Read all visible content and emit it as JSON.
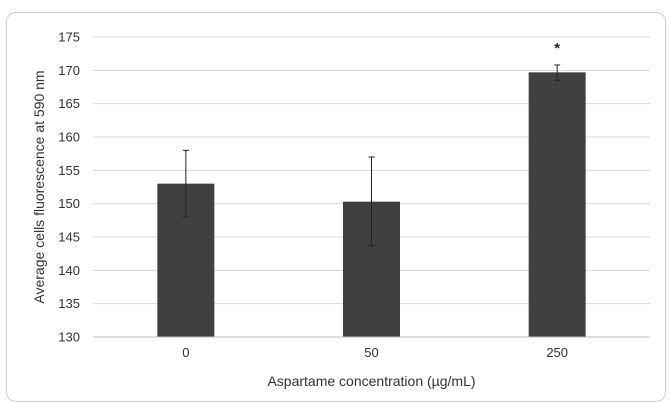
{
  "chart_data": {
    "type": "bar",
    "categories": [
      "0",
      "50",
      "250"
    ],
    "values": [
      153.0,
      150.3,
      169.7
    ],
    "error_upper": [
      158.0,
      157.0,
      170.8
    ],
    "error_lower": [
      148.0,
      143.7,
      168.5
    ],
    "annotations": [
      "",
      "",
      "*"
    ],
    "title": "",
    "xlabel": "Aspartame concentration (µg/mL)",
    "ylabel": "Average cells fluorescence at 590 nm",
    "ylim": [
      130,
      175
    ],
    "yticks": [
      130,
      135,
      140,
      145,
      150,
      155,
      160,
      165,
      170,
      175
    ],
    "grid": true,
    "legend": "none",
    "bar_color": "#404040",
    "grid_color": "#d9d9d9"
  }
}
